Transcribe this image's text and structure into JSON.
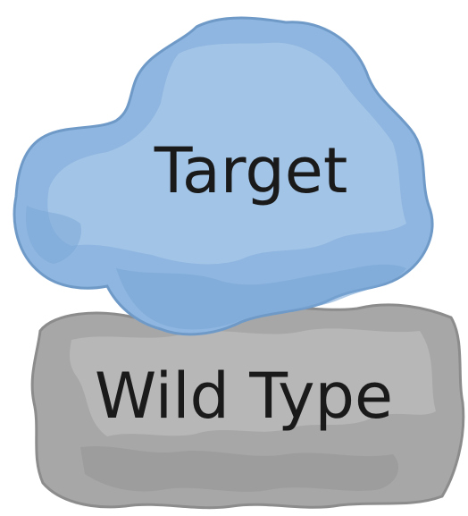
{
  "shapes": [
    {
      "label": "Target"
    },
    {
      "label": "Wild Type"
    }
  ]
}
